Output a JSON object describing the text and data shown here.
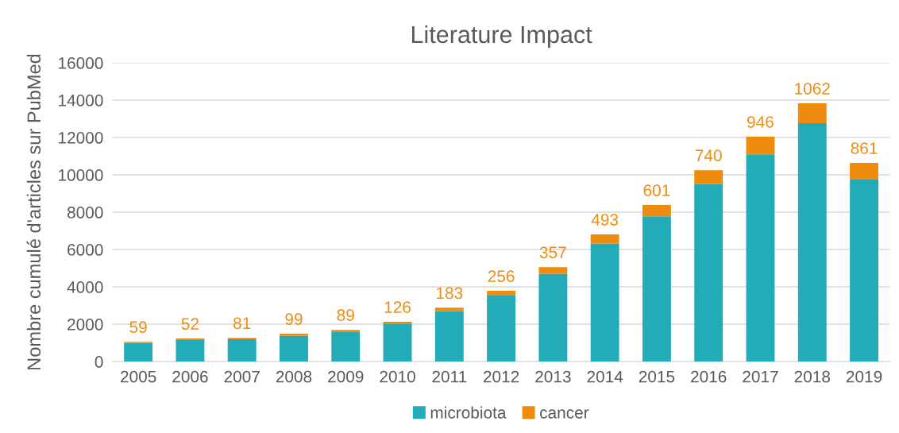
{
  "chart_data": {
    "type": "bar",
    "title": "Literature Impact",
    "ylabel": "Nombre cumulé d'articles sur PubMed",
    "categories": [
      "2005",
      "2006",
      "2007",
      "2008",
      "2009",
      "2010",
      "2011",
      "2012",
      "2013",
      "2014",
      "2015",
      "2016",
      "2017",
      "2018",
      "2019"
    ],
    "series": [
      {
        "name": "microbiota",
        "color": "#23abb8",
        "values": [
          1000,
          1180,
          1190,
          1390,
          1610,
          2000,
          2700,
          3530,
          4700,
          6320,
          7780,
          9510,
          11100,
          12770,
          9780
        ]
      },
      {
        "name": "cancer",
        "color": "#ef8c0c",
        "values": [
          59,
          52,
          81,
          99,
          89,
          126,
          183,
          256,
          357,
          493,
          601,
          740,
          946,
          1062,
          861
        ],
        "value_labels": [
          "59",
          "52",
          "81",
          "99",
          "89",
          "126",
          "183",
          "256",
          "357",
          "493",
          "601",
          "740",
          "946",
          "1062",
          "861"
        ]
      }
    ],
    "stacked": true,
    "ylim": [
      0,
      16000
    ],
    "yticks": [
      0,
      2000,
      4000,
      6000,
      8000,
      10000,
      12000,
      14000,
      16000
    ],
    "grid": "y",
    "legend": "bottom"
  }
}
